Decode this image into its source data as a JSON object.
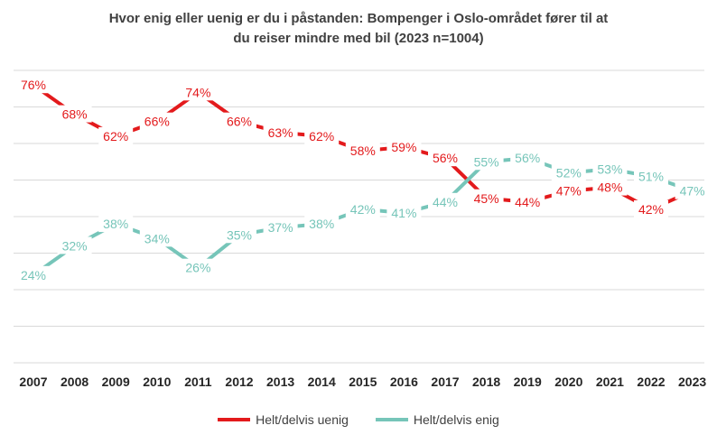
{
  "chart_data": {
    "type": "line",
    "title_lines": [
      "Hvor enig eller uenig er du i påstanden: Bompenger i Oslo-området fører til at",
      "du reiser mindre med bil (2023 n=1004)"
    ],
    "categories": [
      "2007",
      "2008",
      "2009",
      "2010",
      "2011",
      "2012",
      "2013",
      "2014",
      "2015",
      "2016",
      "2017",
      "2018",
      "2019",
      "2020",
      "2021",
      "2022",
      "2023"
    ],
    "series": [
      {
        "name": "Helt/delvis uenig",
        "color": "#e31a1c",
        "values": [
          76,
          68,
          62,
          66,
          74,
          66,
          63,
          62,
          58,
          59,
          56,
          45,
          44,
          47,
          48,
          42,
          47
        ],
        "labels": [
          "76%",
          "68%",
          "62%",
          "66%",
          "74%",
          "66%",
          "63%",
          "62%",
          "58%",
          "59%",
          "56%",
          "45%",
          "44%",
          "47%",
          "48%",
          "42%",
          ""
        ]
      },
      {
        "name": "Helt/delvis enig",
        "color": "#76c5b9",
        "values": [
          24,
          32,
          38,
          34,
          26,
          35,
          37,
          38,
          42,
          41,
          44,
          55,
          56,
          52,
          53,
          51,
          47
        ],
        "labels": [
          "24%",
          "32%",
          "38%",
          "34%",
          "26%",
          "35%",
          "37%",
          "38%",
          "42%",
          "41%",
          "44%",
          "55%",
          "56%",
          "52%",
          "53%",
          "51%",
          "47%"
        ]
      }
    ],
    "ylim": [
      0,
      80
    ],
    "grid": true,
    "legend_position": "bottom"
  }
}
